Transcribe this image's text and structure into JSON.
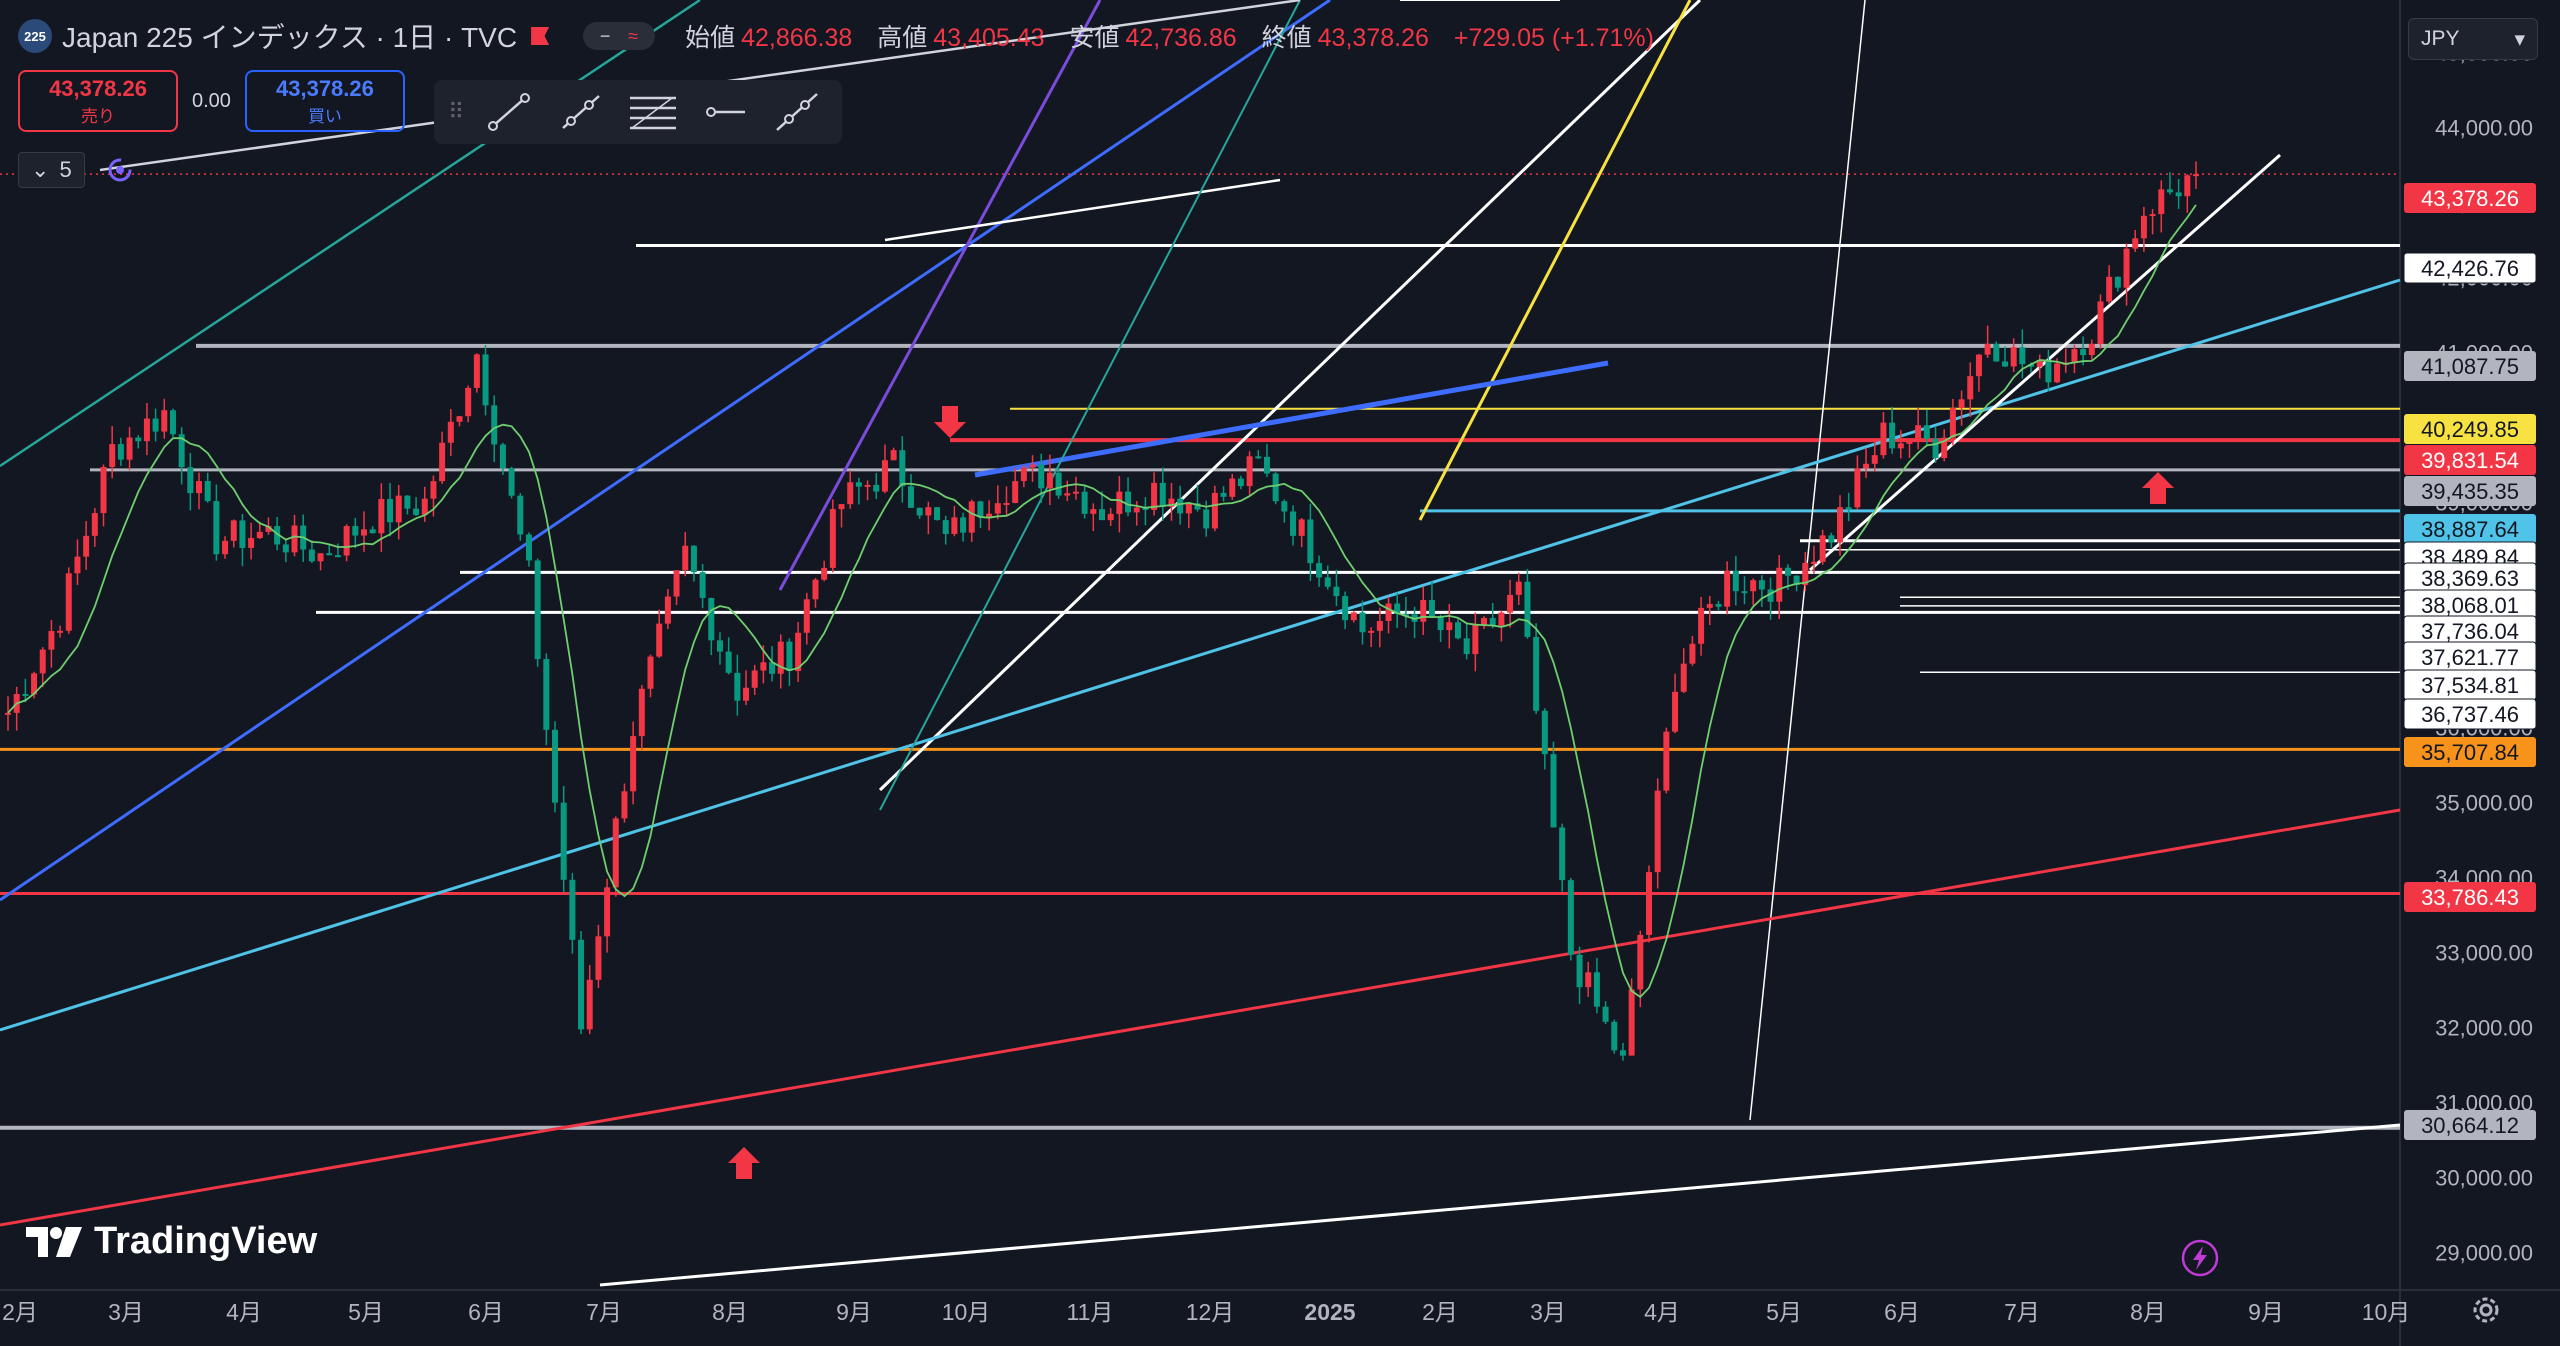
{
  "symbol": {
    "badge": "225",
    "title": "Japan 225 インデックス · 1日 · TVC"
  },
  "header_pills": [
    "−",
    "≈"
  ],
  "ohlc": {
    "open_label": "始値",
    "open": "42,866.38",
    "high_label": "高値",
    "high": "43,405.43",
    "low_label": "安値",
    "low": "42,736.86",
    "close_label": "終値",
    "close": "43,378.26",
    "change": "+729.05 (+1.71%)"
  },
  "trade": {
    "sell_price": "43,378.26",
    "sell_label": "売り",
    "spread": "0.00",
    "buy_price": "43,378.26",
    "buy_label": "買い"
  },
  "toolbar_icons": [
    "drag-handle-icon",
    "trend-line-icon",
    "ray-icon",
    "fib-retracement-icon",
    "horizontal-ray-icon",
    "extended-line-icon"
  ],
  "indicators": {
    "count": "5"
  },
  "currency": "JPY",
  "logo_text": "TradingView",
  "colors": {
    "background": "#131722",
    "up": "#f23645",
    "down": "#089981",
    "ma": "#6fcf6f"
  },
  "axis": {
    "y_ticks": [
      "45,000.00",
      "44,000.00",
      "43,000.00",
      "42,000.00",
      "41,000.00",
      "40,000.00",
      "39,000.00",
      "38,000.00",
      "37,000.00",
      "36,000.00",
      "35,000.00",
      "34,000.00",
      "33,000.00",
      "32,000.00",
      "31,000.00",
      "30,000.00",
      "29,000.00"
    ],
    "x_ticks": [
      "2月",
      "3月",
      "4月",
      "5月",
      "6月",
      "7月",
      "8月",
      "9月",
      "10月",
      "11月",
      "12月",
      "2025",
      "2月",
      "3月",
      "4月",
      "5月",
      "6月",
      "7月",
      "8月",
      "9月",
      "10月"
    ]
  },
  "price_labels": [
    {
      "text": "43,378.26",
      "style": "red"
    },
    {
      "text": "42,426.76",
      "style": "white"
    },
    {
      "text": "41,087.75",
      "style": "grey"
    },
    {
      "text": "40,249.85",
      "style": "yellow"
    },
    {
      "text": "39,831.54",
      "style": "red"
    },
    {
      "text": "39,435.35",
      "style": "grey"
    },
    {
      "text": "38,887.64",
      "style": "cyan"
    },
    {
      "text": "38,489.84",
      "style": "white"
    },
    {
      "text": "38,369.63",
      "style": "white"
    },
    {
      "text": "38,068.01",
      "style": "white"
    },
    {
      "text": "37,736.04",
      "style": "white"
    },
    {
      "text": "37,621.77",
      "style": "white"
    },
    {
      "text": "37,534.81",
      "style": "white"
    },
    {
      "text": "36,737.46",
      "style": "white"
    },
    {
      "text": "35,707.84",
      "style": "orange"
    },
    {
      "text": "33,786.43",
      "style": "red"
    },
    {
      "text": "30,664.12",
      "style": "grey"
    }
  ],
  "chart_data": {
    "type": "candlestick",
    "title": "Japan 225 インデックス · 1日 · TVC",
    "x": [
      "2024-02",
      "2024-03",
      "2024-04",
      "2024-05",
      "2024-06",
      "2024-07",
      "2024-08",
      "2024-09",
      "2024-10",
      "2024-11",
      "2024-12",
      "2025-01",
      "2025-02",
      "2025-03",
      "2025-04",
      "2025-05",
      "2025-06",
      "2025-07",
      "2025-08",
      "2025-09",
      "2025-10"
    ],
    "close_path": [
      36200,
      37500,
      39700,
      40200,
      38500,
      38600,
      38300,
      38800,
      39000,
      41000,
      38000,
      32000,
      36000,
      38300,
      36500,
      37000,
      39000,
      39500,
      38500,
      39200,
      39400,
      38900,
      39200,
      38900,
      39500,
      38400,
      37300,
      37600,
      37000,
      37800,
      33000,
      31500,
      36700,
      38000,
      37900,
      38600,
      39900,
      39800,
      41200,
      40700,
      41300,
      42900,
      43378
    ],
    "ylim": [
      28500,
      45300
    ],
    "last_close": 43378.26,
    "levels": [
      42426.76,
      41087.75,
      40249.85,
      39831.54,
      39435.35,
      38887.64,
      38489.84,
      38369.63,
      38068.01,
      37736.04,
      37621.77,
      37534.81,
      36737.46,
      35707.84,
      33786.43,
      30664.12
    ]
  }
}
